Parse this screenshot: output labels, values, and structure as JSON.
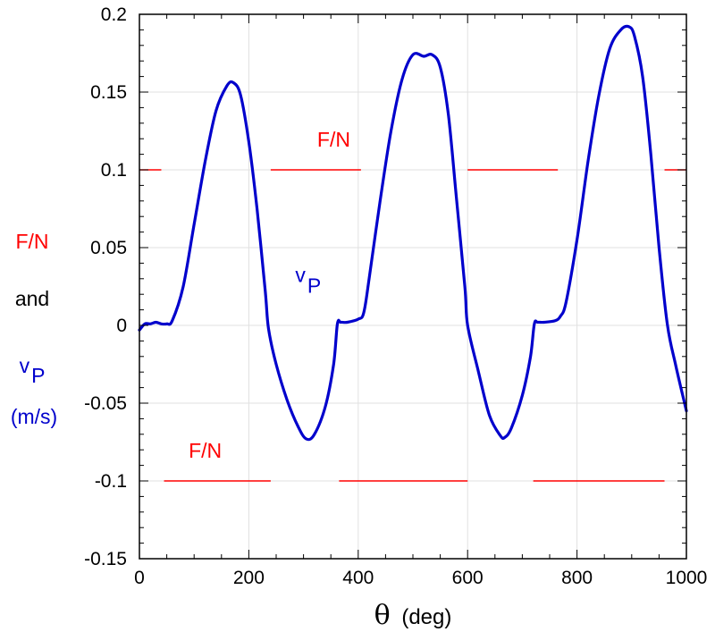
{
  "chart_data": {
    "type": "line",
    "xlabel": {
      "symbol": "θ",
      "unit": "(deg)"
    },
    "ylabel_lines": [
      {
        "text": "F/N",
        "color": "#ff0000"
      },
      {
        "text": "and",
        "color": "#000000"
      },
      {
        "text": "v",
        "sub": "P",
        "color": "#0000cc"
      },
      {
        "text": "(m/s)",
        "color": "#0000cc"
      }
    ],
    "xlim": [
      0,
      1000
    ],
    "ylim": [
      -0.15,
      0.2
    ],
    "xticks": [
      0,
      200,
      400,
      600,
      800,
      1000
    ],
    "xtick_labels": [
      "0",
      "200",
      "400",
      "600",
      "800",
      "1000"
    ],
    "yticks": [
      -0.15,
      -0.1,
      -0.05,
      0,
      0.05,
      0.1,
      0.15,
      0.2
    ],
    "ytick_labels": [
      "-0.15",
      "-0.1",
      "-0.05",
      "0",
      "0.05",
      "0.1",
      "0.15",
      "0.2"
    ],
    "grid": true,
    "series": [
      {
        "name": "vP",
        "color": "#0000cc",
        "x": [
          0,
          10,
          20,
          30,
          40,
          50,
          60,
          80,
          100,
          120,
          140,
          160,
          172,
          185,
          200,
          215,
          230,
          236,
          250,
          270,
          290,
          305,
          320,
          340,
          355,
          362,
          368,
          380,
          400,
          410,
          420,
          440,
          460,
          480,
          500,
          520,
          535,
          550,
          565,
          580,
          595,
          600,
          620,
          640,
          660,
          668,
          680,
          700,
          715,
          722,
          728,
          740,
          760,
          770,
          780,
          800,
          820,
          840,
          860,
          880,
          895,
          905,
          920,
          935,
          950,
          965,
          980,
          1000
        ],
        "y": [
          -0.003,
          0.001,
          0.001,
          0.002,
          0.001,
          0.001,
          0.003,
          0.025,
          0.065,
          0.105,
          0.138,
          0.154,
          0.156,
          0.148,
          0.118,
          0.075,
          0.022,
          -0.002,
          -0.025,
          -0.048,
          -0.065,
          -0.073,
          -0.07,
          -0.052,
          -0.025,
          0.001,
          0.002,
          0.002,
          0.004,
          0.008,
          0.03,
          0.08,
          0.125,
          0.158,
          0.174,
          0.173,
          0.174,
          0.166,
          0.135,
          0.08,
          0.025,
          0.0,
          -0.03,
          -0.058,
          -0.071,
          -0.072,
          -0.066,
          -0.045,
          -0.02,
          0.001,
          0.002,
          0.002,
          0.003,
          0.006,
          0.015,
          0.055,
          0.105,
          0.148,
          0.178,
          0.19,
          0.192,
          0.186,
          0.16,
          0.11,
          0.05,
          0.001,
          -0.025,
          -0.055
        ]
      },
      {
        "name": "F/N",
        "color": "#ff0000",
        "segments": [
          {
            "x": [
              0,
              40
            ],
            "y": 0.1
          },
          {
            "x": [
              240,
              405
            ],
            "y": 0.1
          },
          {
            "x": [
              600,
              765
            ],
            "y": 0.1
          },
          {
            "x": [
              960,
              1000
            ],
            "y": 0.1
          },
          {
            "x": [
              45,
              240
            ],
            "y": -0.1
          },
          {
            "x": [
              365,
              600
            ],
            "y": -0.1
          },
          {
            "x": [
              720,
              960
            ],
            "y": -0.1
          }
        ]
      }
    ],
    "annotations": [
      {
        "text": "F/N",
        "color": "#ff0000",
        "x": 325,
        "y": 0.115
      },
      {
        "text": "v",
        "sub": "P",
        "color": "#0000cc",
        "x": 285,
        "y": 0.028
      },
      {
        "text": "F/N",
        "color": "#ff0000",
        "x": 90,
        "y": -0.085
      }
    ]
  }
}
